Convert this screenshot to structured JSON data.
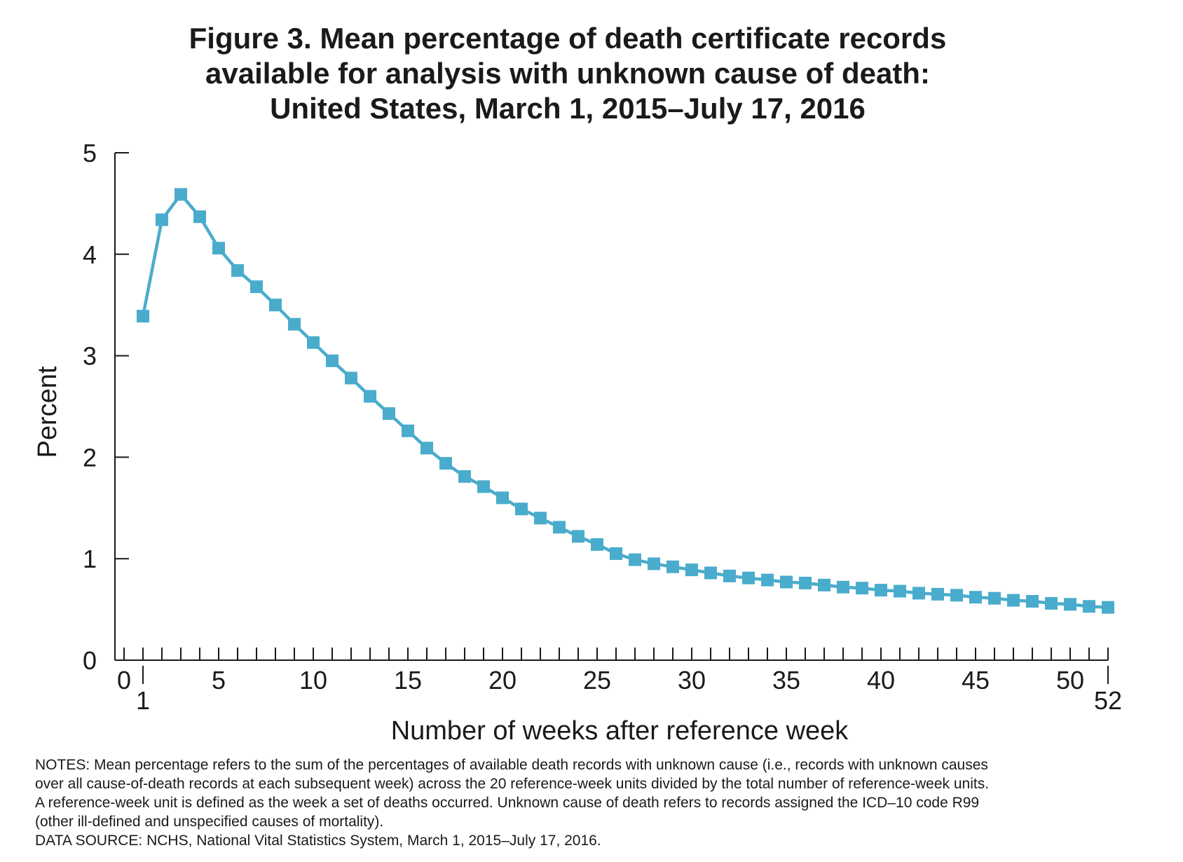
{
  "title_lines": [
    "Figure 3. Mean percentage of death certificate records",
    "available for analysis with unknown cause of death:",
    "United States, March 1, 2015–July 17, 2016"
  ],
  "notes_lines": [
    "NOTES: Mean percentage refers to the sum of the percentages of available death records with unknown cause (i.e., records with unknown causes",
    "over all cause-of-death records at each subsequent week) across the 20 reference-week units divided by the total number of reference-week units.",
    "A reference-week unit is defined as the week a set of deaths occurred. Unknown cause of death refers to records assigned the ICD–10 code R99",
    "(other ill-defined and unspecified causes of mortality).",
    "DATA SOURCE: NCHS, National Vital Statistics System, March 1, 2015–July 17, 2016."
  ],
  "colors": {
    "series": "#4aaccc",
    "axis": "#1a1a1a",
    "text": "#1a1a1a"
  },
  "chart_data": {
    "type": "line",
    "title": "Figure 3. Mean percentage of death certificate records available for analysis with unknown cause of death: United States, March 1, 2015–July 17, 2016",
    "xlabel": "Number of weeks after reference week",
    "ylabel": "Percent",
    "xlim": [
      0,
      52
    ],
    "ylim": [
      0,
      5
    ],
    "yticks": [
      0,
      1,
      2,
      3,
      4,
      5
    ],
    "xtick_labels": [
      {
        "value": 0,
        "label": "0",
        "row": 1
      },
      {
        "value": 1,
        "label": "1",
        "row": 2
      },
      {
        "value": 5,
        "label": "5",
        "row": 1
      },
      {
        "value": 10,
        "label": "10",
        "row": 1
      },
      {
        "value": 15,
        "label": "15",
        "row": 1
      },
      {
        "value": 20,
        "label": "20",
        "row": 1
      },
      {
        "value": 25,
        "label": "25",
        "row": 1
      },
      {
        "value": 30,
        "label": "30",
        "row": 1
      },
      {
        "value": 35,
        "label": "35",
        "row": 1
      },
      {
        "value": 40,
        "label": "40",
        "row": 1
      },
      {
        "value": 45,
        "label": "45",
        "row": 1
      },
      {
        "value": 50,
        "label": "50",
        "row": 1
      },
      {
        "value": 52,
        "label": "52",
        "row": 2
      }
    ],
    "grid": false,
    "legend": "none",
    "x": [
      1,
      2,
      3,
      4,
      5,
      6,
      7,
      8,
      9,
      10,
      11,
      12,
      13,
      14,
      15,
      16,
      17,
      18,
      19,
      20,
      21,
      22,
      23,
      24,
      25,
      26,
      27,
      28,
      29,
      30,
      31,
      32,
      33,
      34,
      35,
      36,
      37,
      38,
      39,
      40,
      41,
      42,
      43,
      44,
      45,
      46,
      47,
      48,
      49,
      50,
      51,
      52
    ],
    "series": [
      {
        "values": [
          3.39,
          4.34,
          4.59,
          4.37,
          4.06,
          3.84,
          3.68,
          3.5,
          3.31,
          3.13,
          2.95,
          2.78,
          2.6,
          2.43,
          2.26,
          2.09,
          1.94,
          1.81,
          1.71,
          1.6,
          1.49,
          1.4,
          1.31,
          1.22,
          1.14,
          1.05,
          0.99,
          0.95,
          0.92,
          0.89,
          0.86,
          0.83,
          0.81,
          0.79,
          0.77,
          0.76,
          0.74,
          0.72,
          0.71,
          0.69,
          0.68,
          0.66,
          0.65,
          0.64,
          0.62,
          0.61,
          0.59,
          0.58,
          0.56,
          0.55,
          0.53,
          0.52
        ]
      }
    ]
  }
}
